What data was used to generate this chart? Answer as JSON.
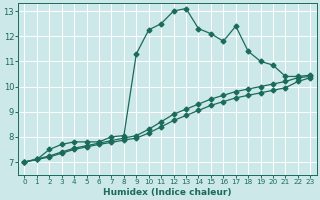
{
  "xlabel": "Humidex (Indice chaleur)",
  "bg_color": "#cce8e8",
  "line_color": "#1a6b5a",
  "grid_color": "#ffffff",
  "xlim": [
    -0.5,
    23.5
  ],
  "ylim": [
    6.5,
    13.3
  ],
  "xticks": [
    0,
    1,
    2,
    3,
    4,
    5,
    6,
    7,
    8,
    9,
    10,
    11,
    12,
    13,
    14,
    15,
    16,
    17,
    18,
    19,
    20,
    21,
    22,
    23
  ],
  "yticks": [
    7,
    8,
    9,
    10,
    11,
    12,
    13
  ],
  "line1_x": [
    0,
    1,
    2,
    3,
    4,
    5,
    6,
    7,
    8,
    9,
    10,
    11,
    12,
    13,
    14,
    15,
    16,
    17,
    18,
    19,
    20,
    21,
    22,
    23
  ],
  "line1_y": [
    7.0,
    7.1,
    7.5,
    7.7,
    7.8,
    7.8,
    7.8,
    8.0,
    8.05,
    11.3,
    12.25,
    12.5,
    13.0,
    13.1,
    12.3,
    12.1,
    11.8,
    12.4,
    11.4,
    11.0,
    10.85,
    10.4,
    10.4,
    10.45
  ],
  "line2_x": [
    0,
    1,
    2,
    3,
    4,
    5,
    6,
    7,
    8,
    9,
    10,
    11,
    12,
    13,
    14,
    15,
    16,
    17,
    18,
    19,
    20,
    21,
    22,
    23
  ],
  "line2_y": [
    7.0,
    7.12,
    7.24,
    7.4,
    7.55,
    7.65,
    7.75,
    7.85,
    7.95,
    8.05,
    8.3,
    8.6,
    8.9,
    9.1,
    9.3,
    9.5,
    9.65,
    9.8,
    9.9,
    10.0,
    10.1,
    10.2,
    10.35,
    10.4
  ],
  "line3_x": [
    0,
    1,
    2,
    3,
    4,
    5,
    6,
    7,
    8,
    9,
    10,
    11,
    12,
    13,
    14,
    15,
    16,
    17,
    18,
    19,
    20,
    21,
    22,
    23
  ],
  "line3_y": [
    7.0,
    7.1,
    7.2,
    7.35,
    7.5,
    7.6,
    7.7,
    7.78,
    7.87,
    7.95,
    8.15,
    8.4,
    8.65,
    8.85,
    9.05,
    9.25,
    9.4,
    9.55,
    9.65,
    9.75,
    9.85,
    9.95,
    10.2,
    10.35
  ]
}
